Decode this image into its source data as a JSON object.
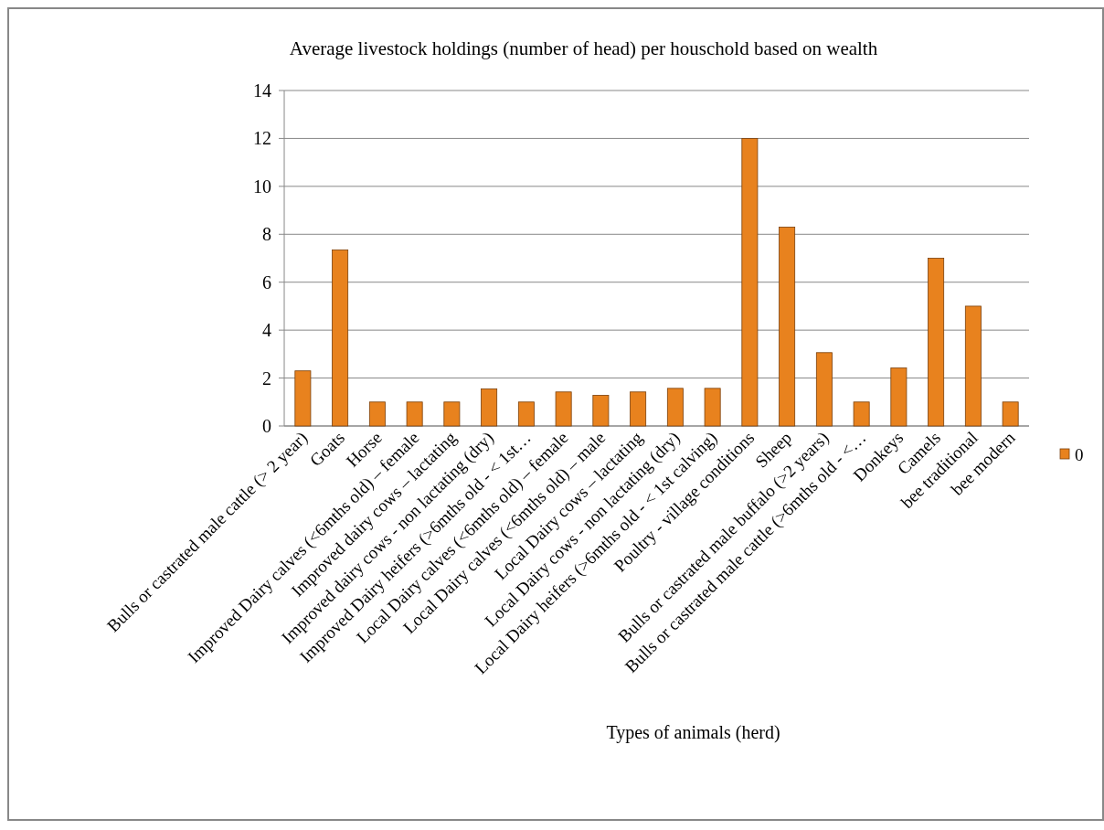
{
  "chart_data": {
    "type": "bar",
    "title": "Average livestock holdings (number of head) per houschold based on wealth",
    "xlabel": "Types of animals (herd)",
    "categories": [
      "Bulls or castrated male cattle (> 2 year)",
      "Goats",
      "Horse",
      "Improved Dairy calves (<6mths old) – female",
      "Improved dairy cows – lactating",
      "Improved dairy cows - non lactating (dry)",
      "Improved Dairy heifers (>6mths old  - < 1st…",
      "Local Dairy calves (<6mths old) – female",
      "Local Dairy calves (<6mths old) – male",
      "Local Dairy cows – lactating",
      "Local Dairy cows - non lactating (dry)",
      "Local Dairy heifers (>6mths old  - < 1st calving)",
      "Poultry - village conditions",
      "Sheep",
      "Bulls or castrated male buffalo (>2 years)",
      "Bulls or castrated male cattle (>6mths old  - <…",
      "Donkeys",
      "Camels",
      "bee traditional",
      "bee modern"
    ],
    "series": [
      {
        "name": "0",
        "color": "#e8821e",
        "values": [
          2.3,
          7.35,
          1,
          1,
          1,
          1.55,
          1,
          1.42,
          1.28,
          1.42,
          1.57,
          1.57,
          12,
          8.3,
          3.06,
          1,
          2.42,
          7,
          5,
          1
        ]
      }
    ],
    "ylim": [
      0,
      14
    ],
    "yticks": [
      0,
      2,
      4,
      6,
      8,
      10,
      12,
      14
    ],
    "grid": "y",
    "legend": "right"
  }
}
